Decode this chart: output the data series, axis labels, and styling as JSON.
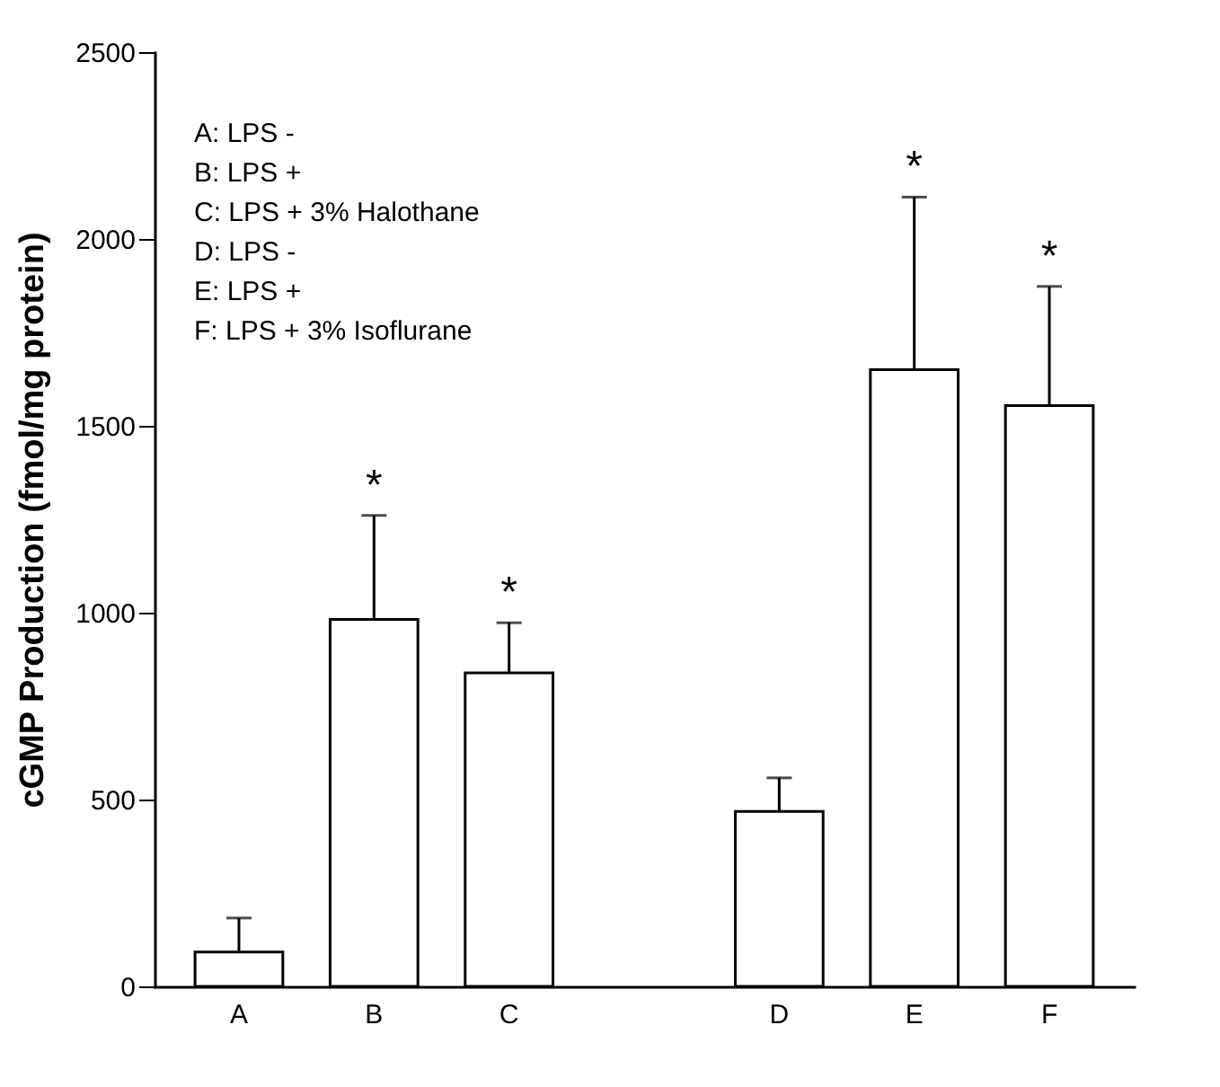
{
  "chart_data": {
    "type": "bar",
    "ylabel": "cGMP Production (fmol/mg protein)",
    "categories": [
      "A",
      "B",
      "C",
      null,
      "D",
      "E",
      "F"
    ],
    "values": [
      92,
      982,
      839,
      null,
      468,
      1650,
      1554
    ],
    "errors": [
      [
        92,
        183
      ],
      [
        982,
        1260
      ],
      [
        839,
        973
      ],
      null,
      [
        468,
        558
      ],
      [
        1650,
        2112
      ],
      [
        1554,
        1873
      ]
    ],
    "color": "#ffffff",
    "ylim": [
      0,
      2500
    ],
    "yticks": [
      0,
      500,
      1000,
      1500,
      2000,
      2500
    ],
    "grid": false,
    "annotations": [
      "A: LPS -",
      "B: LPS +",
      "C: LPS + 3% Halothane",
      "D: LPS -",
      "E: LPS +",
      "F: LPS + 3% Isoflurane",
      {
        "text": "*",
        "x": "B",
        "y": 1260
      },
      {
        "text": "*",
        "x": "C",
        "y": 973
      },
      {
        "text": "*",
        "x": "E",
        "y": 2112
      },
      {
        "text": "*",
        "x": "F",
        "y": 1873
      }
    ]
  }
}
